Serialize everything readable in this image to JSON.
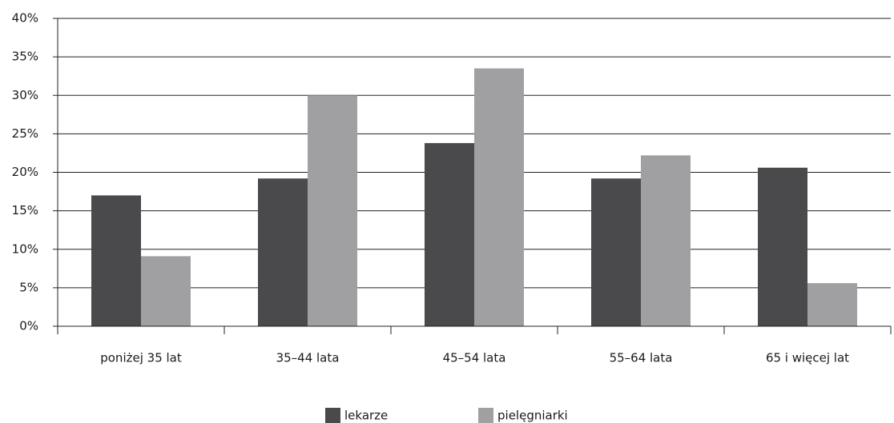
{
  "chart_data": {
    "type": "bar",
    "categories": [
      "poniżej 35 lat",
      "35–44 lata",
      "45–54 lata",
      "55–64 lata",
      "65 i więcej lat"
    ],
    "series": [
      {
        "name": "lekarze",
        "color": "#4a4a4c",
        "values": [
          17,
          19.2,
          23.8,
          19.2,
          20.6
        ]
      },
      {
        "name": "pielęgniarki",
        "color": "#a0a0a2",
        "values": [
          9.1,
          30,
          33.5,
          22.2,
          5.6
        ]
      }
    ],
    "ylim": [
      0,
      40
    ],
    "yticks": [
      {
        "value": 0,
        "label": "0%"
      },
      {
        "value": 5,
        "label": "5%"
      },
      {
        "value": 10,
        "label": "10%"
      },
      {
        "value": 15,
        "label": "15%"
      },
      {
        "value": 20,
        "label": "20%"
      },
      {
        "value": 25,
        "label": "25%"
      },
      {
        "value": 30,
        "label": "30%"
      },
      {
        "value": 35,
        "label": "35%"
      },
      {
        "value": 40,
        "label": "40%"
      }
    ],
    "grid": true,
    "legend": "bottom"
  }
}
